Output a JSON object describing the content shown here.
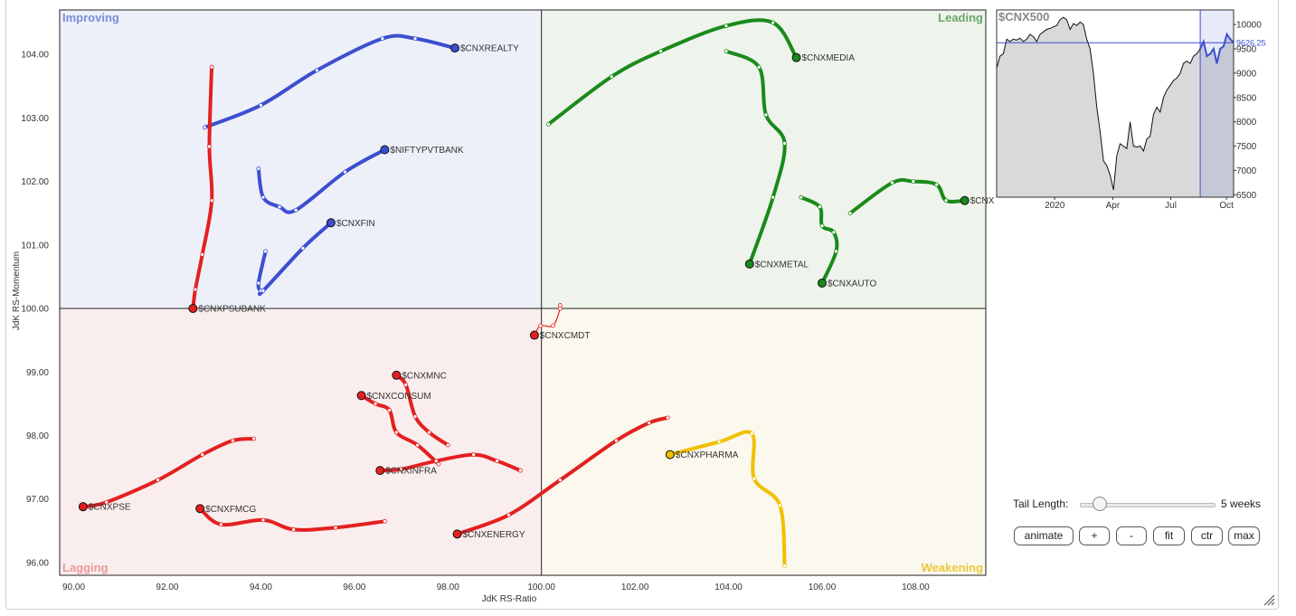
{
  "chart_data": {
    "type": "scatter",
    "title": "",
    "xlabel": "JdK RS-Ratio",
    "ylabel": "JdK RS-Momentum",
    "xlim": [
      89.7,
      109.5
    ],
    "ylim": [
      95.8,
      104.7
    ],
    "center": [
      100.0,
      100.0
    ],
    "x_ticks": [
      "90.00",
      "92.00",
      "94.00",
      "96.00",
      "98.00",
      "100.00",
      "102.00",
      "104.00",
      "106.00",
      "108.00"
    ],
    "x_tick_values": [
      90,
      92,
      94,
      96,
      98,
      100,
      102,
      104,
      106,
      108
    ],
    "y_ticks": [
      "96.00",
      "97.00",
      "98.00",
      "99.00",
      "100.00",
      "101.00",
      "102.00",
      "103.00",
      "104.00"
    ],
    "y_tick_values": [
      96,
      97,
      98,
      99,
      100,
      101,
      102,
      103,
      104
    ],
    "quadrants": {
      "improving": {
        "label": "Improving",
        "fill": "#eef0f9",
        "text": "#7b8fd8"
      },
      "leading": {
        "label": "Leading",
        "fill": "#eef4ec",
        "text": "#6aa86a"
      },
      "lagging": {
        "label": "Lagging",
        "fill": "#f9eded",
        "text": "#ec9a9a"
      },
      "weakening": {
        "label": "Weakening",
        "fill": "#fbf8ee",
        "text": "#ecc83a"
      }
    },
    "series": [
      {
        "name": "$CNXREALTY",
        "color": "#3b4fcf",
        "points": [
          [
            92.8,
            102.85
          ],
          [
            94.0,
            103.2
          ],
          [
            95.2,
            103.75
          ],
          [
            96.6,
            104.25
          ],
          [
            97.3,
            104.25
          ],
          [
            98.15,
            104.1
          ]
        ]
      },
      {
        "name": "$NIFTYPVTBANK",
        "color": "#3b4fcf",
        "points": [
          [
            93.95,
            102.2
          ],
          [
            94.05,
            101.75
          ],
          [
            94.4,
            101.6
          ],
          [
            94.75,
            101.55
          ],
          [
            95.8,
            102.15
          ],
          [
            96.65,
            102.5
          ]
        ]
      },
      {
        "name": "$CNXFIN",
        "color": "#3b4fcf",
        "points": [
          [
            94.1,
            100.9
          ],
          [
            93.95,
            100.4
          ],
          [
            94.0,
            100.28
          ],
          [
            94.05,
            100.28
          ],
          [
            94.9,
            100.95
          ],
          [
            95.5,
            101.35
          ]
        ]
      },
      {
        "name": "$CNXPSUBANK",
        "color": "#e32020",
        "points": [
          [
            92.95,
            103.8
          ],
          [
            92.9,
            102.55
          ],
          [
            92.95,
            101.7
          ],
          [
            92.75,
            100.85
          ],
          [
            92.6,
            100.3
          ],
          [
            92.55,
            100.0
          ]
        ]
      },
      {
        "name": "$CNXMEDIA",
        "color": "#1a8a1a",
        "points": [
          [
            100.15,
            102.9
          ],
          [
            101.5,
            103.65
          ],
          [
            102.55,
            104.05
          ],
          [
            103.95,
            104.45
          ],
          [
            104.95,
            104.5
          ],
          [
            105.45,
            103.95
          ]
        ]
      },
      {
        "name": "$CNXMETAL",
        "color": "#1a8a1a",
        "points": [
          [
            103.95,
            104.05
          ],
          [
            104.65,
            103.8
          ],
          [
            104.8,
            103.05
          ],
          [
            105.2,
            102.6
          ],
          [
            104.95,
            101.75
          ],
          [
            104.45,
            100.7
          ]
        ]
      },
      {
        "name": "$CNXAUTO",
        "color": "#1a8a1a",
        "points": [
          [
            105.55,
            101.75
          ],
          [
            105.95,
            101.6
          ],
          [
            106.0,
            101.3
          ],
          [
            106.25,
            101.2
          ],
          [
            106.3,
            100.9
          ],
          [
            106.0,
            100.4
          ]
        ]
      },
      {
        "name": "$CNXIT",
        "color": "#1a8a1a",
        "points": [
          [
            106.6,
            101.5
          ],
          [
            107.5,
            101.98
          ],
          [
            107.95,
            102.0
          ],
          [
            108.45,
            101.95
          ],
          [
            108.65,
            101.7
          ],
          [
            109.05,
            101.7
          ]
        ]
      },
      {
        "name": "$CNXCMDT",
        "color": "#e32020",
        "points": [
          [
            100.4,
            100.05
          ],
          [
            100.4,
            100.0
          ],
          [
            100.25,
            99.73
          ],
          [
            99.98,
            99.73
          ],
          [
            99.85,
            99.58
          ]
        ]
      },
      {
        "name": "$CNXMNC",
        "color": "#e32020",
        "points": [
          [
            98.0,
            97.85
          ],
          [
            97.6,
            98.05
          ],
          [
            97.3,
            98.3
          ],
          [
            97.1,
            98.8
          ],
          [
            96.9,
            98.95
          ]
        ]
      },
      {
        "name": "$CNXCONSUM",
        "color": "#e32020",
        "points": [
          [
            97.8,
            97.55
          ],
          [
            97.35,
            97.85
          ],
          [
            96.9,
            98.05
          ],
          [
            96.75,
            98.4
          ],
          [
            96.45,
            98.5
          ],
          [
            96.15,
            98.63
          ]
        ]
      },
      {
        "name": "$CNXINFRA",
        "color": "#e32020",
        "points": [
          [
            99.55,
            97.45
          ],
          [
            99.05,
            97.6
          ],
          [
            98.55,
            97.7
          ],
          [
            97.75,
            97.6
          ],
          [
            97.0,
            97.47
          ],
          [
            96.55,
            97.45
          ]
        ]
      },
      {
        "name": "$CNXPSE",
        "color": "#e32020",
        "points": [
          [
            93.85,
            97.95
          ],
          [
            93.4,
            97.92
          ],
          [
            92.75,
            97.7
          ],
          [
            91.8,
            97.3
          ],
          [
            90.7,
            96.95
          ],
          [
            90.2,
            96.88
          ]
        ]
      },
      {
        "name": "$CNXFMCG",
        "color": "#e32020",
        "points": [
          [
            96.65,
            96.65
          ],
          [
            95.6,
            96.55
          ],
          [
            94.7,
            96.52
          ],
          [
            94.05,
            96.67
          ],
          [
            93.15,
            96.6
          ],
          [
            92.7,
            96.85
          ]
        ]
      },
      {
        "name": "$CNXENERGY",
        "color": "#e32020",
        "points": [
          [
            102.7,
            98.28
          ],
          [
            102.3,
            98.2
          ],
          [
            101.6,
            97.92
          ],
          [
            100.4,
            97.3
          ],
          [
            99.3,
            96.75
          ],
          [
            98.2,
            96.45
          ]
        ]
      },
      {
        "name": "$CNXPHARMA",
        "color": "#f0c000",
        "points": [
          [
            105.2,
            95.95
          ],
          [
            105.1,
            96.9
          ],
          [
            104.55,
            97.32
          ],
          [
            104.5,
            98.03
          ],
          [
            103.8,
            97.9
          ],
          [
            102.75,
            97.7
          ]
        ]
      }
    ],
    "benchmark": {
      "name": "$CNX500",
      "last_value": "9626.25",
      "y_ticks": [
        "10000",
        "9500",
        "9000",
        "8500",
        "8000",
        "7500",
        "7000",
        "6500"
      ],
      "y_tick_values": [
        10000,
        9500,
        9000,
        8500,
        8000,
        7500,
        7000,
        6500
      ],
      "x_ticks": [
        "2020",
        "Apr",
        "Jul",
        "Oct"
      ],
      "x_tick_positions": [
        0.245,
        0.49,
        0.735,
        0.97
      ],
      "ylim": [
        6450,
        10300
      ],
      "values": [
        9100,
        9350,
        9400,
        9700,
        9650,
        9700,
        9680,
        9720,
        9650,
        9700,
        9800,
        9750,
        9650,
        9800,
        9850,
        9900,
        9920,
        9950,
        9980,
        10100,
        10150,
        10100,
        9900,
        10020,
        9980,
        10050,
        10000,
        9700,
        9500,
        9000,
        8300,
        7800,
        7200,
        7100,
        6900,
        6600,
        7300,
        7550,
        7500,
        7450,
        8000,
        7500,
        7480,
        7500,
        7400,
        7650,
        7700,
        8150,
        8300,
        8200,
        8500,
        8650,
        8750,
        8850,
        8900,
        9000,
        9200,
        9250,
        9200,
        9350,
        9400,
        9500,
        9650,
        9350,
        9400,
        9500,
        9200,
        9500,
        9550,
        9800,
        9700,
        9626.25
      ],
      "highlight_start": 0.86
    }
  },
  "controls": {
    "tail_length_label": "Tail Length:",
    "tail_length_value": "5 weeks",
    "tail_length_weeks": 5,
    "buttons": [
      "animate",
      "+",
      "-",
      "fit",
      "ctr",
      "max"
    ]
  }
}
